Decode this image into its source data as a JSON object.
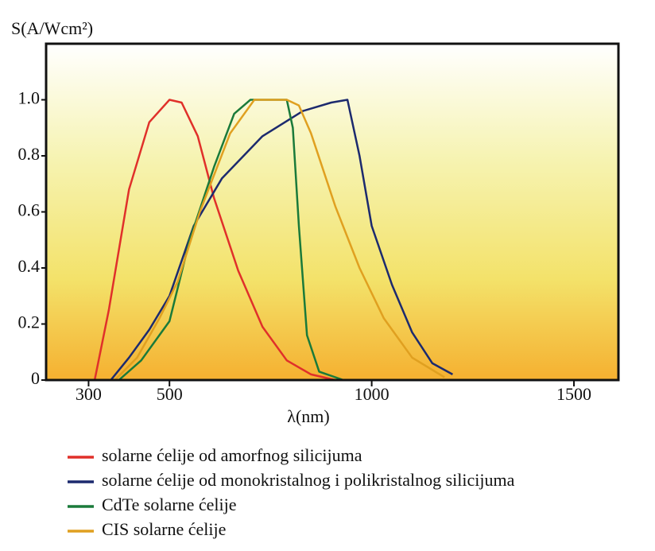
{
  "chart_data": {
    "type": "line",
    "y_label": "S(A/Wcm²)",
    "x_label": "λ(nm)",
    "xlim": [
      195,
      1610
    ],
    "xticks": [
      300,
      500,
      1000,
      1500
    ],
    "ylim": [
      0,
      1.2
    ],
    "yticks": [
      0,
      0.2,
      0.4,
      0.6,
      0.8,
      {
        "value": 1,
        "label": "1.0"
      }
    ],
    "series": [
      {
        "name": "solarne ćelije od amorfnog silicijuma",
        "color": "#e0302a",
        "x": [
          315,
          350,
          400,
          450,
          500,
          530,
          570,
          610,
          670,
          730,
          790,
          850,
          910
        ],
        "values": [
          0,
          0.25,
          0.68,
          0.92,
          1.0,
          0.99,
          0.87,
          0.65,
          0.39,
          0.19,
          0.07,
          0.02,
          0
        ]
      },
      {
        "name": "solarne ćelije od monokristalnog i polikristalnog silicijuma",
        "color": "#1c2a6e",
        "x": [
          355,
          400,
          450,
          500,
          560,
          630,
          730,
          830,
          900,
          940,
          970,
          1000,
          1050,
          1100,
          1150,
          1200
        ],
        "values": [
          0,
          0.08,
          0.18,
          0.3,
          0.55,
          0.72,
          0.87,
          0.96,
          0.99,
          1.0,
          0.8,
          0.55,
          0.34,
          0.17,
          0.06,
          0.02
        ]
      },
      {
        "name": "CdTe solarne ćelije",
        "color": "#1a7a3a",
        "x": [
          375,
          430,
          480,
          500,
          550,
          610,
          660,
          700,
          790,
          805,
          820,
          840,
          870,
          930
        ],
        "values": [
          0,
          0.07,
          0.17,
          0.21,
          0.5,
          0.76,
          0.95,
          1.0,
          1.0,
          0.9,
          0.55,
          0.16,
          0.03,
          0
        ]
      },
      {
        "name": "CIS solarne ćelije",
        "color": "#e0a020",
        "x": [
          365,
          420,
          475,
          520,
          575,
          650,
          710,
          790,
          820,
          850,
          910,
          970,
          1030,
          1100,
          1180
        ],
        "values": [
          0,
          0.08,
          0.22,
          0.35,
          0.6,
          0.88,
          1.0,
          1.0,
          0.98,
          0.88,
          0.62,
          0.4,
          0.22,
          0.08,
          0.01
        ]
      }
    ]
  }
}
